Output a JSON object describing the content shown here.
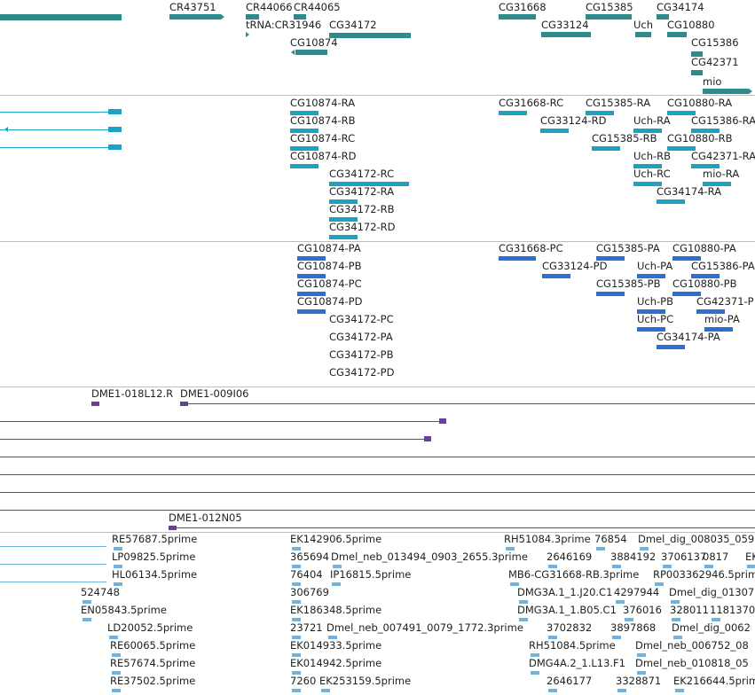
{
  "colors": {
    "gene": "#2d8c8a",
    "transcript": "#1ea0c0",
    "protein": "#2a6fd1",
    "clone": "#6a3ea1",
    "est": "#6fb3e0",
    "divider": "#bdbdbd"
  },
  "tracks": {
    "genes": [
      "CR43751",
      "CR44066",
      "CR44065",
      "tRNA:CR31946",
      "CG34172",
      "CG10874",
      "CG31668",
      "CG33124",
      "CG15385",
      "Uch",
      "CG34174",
      "CG10880",
      "CG15386",
      "CG42371",
      "mio"
    ],
    "transcripts": [
      "CG10874-RA",
      "CG10874-RB",
      "CG10874-RC",
      "CG10874-RD",
      "CG34172-RC",
      "CG34172-RA",
      "CG34172-RB",
      "CG34172-RD",
      "CG31668-RC",
      "CG33124-RD",
      "CG15385-RA",
      "CG15385-RB",
      "Uch-RA",
      "Uch-RB",
      "Uch-RC",
      "CG10880-RA",
      "CG10880-RB",
      "CG15386-RA",
      "CG42371-RA",
      "mio-RA",
      "CG34174-RA"
    ],
    "proteins": [
      "CG10874-PA",
      "CG10874-PB",
      "CG10874-PC",
      "CG10874-PD",
      "CG34172-PC",
      "CG34172-PA",
      "CG34172-PB",
      "CG34172-PD",
      "CG31668-PC",
      "CG33124-PD",
      "CG15385-PA",
      "CG15385-PB",
      "Uch-PA",
      "Uch-PB",
      "Uch-PC",
      "CG10880-PA",
      "CG10880-PB",
      "CG15386-PA",
      "CG42371-P",
      "mio-PA",
      "CG34174-PA"
    ],
    "clones": [
      "DME1-018L12.R",
      "DME1-009I06",
      "DME1-012N05"
    ],
    "ests": [
      "RE57687.5prime",
      "LP09825.5prime",
      "HL06134.5prime",
      "524748",
      "EN05843.5prime",
      "LD20052.5prime",
      "RE60065.5prime",
      "RE57674.5prime",
      "RE37502.5prime",
      "EK142906.5prime",
      "365694",
      "Dmel_neb_013494_0903_2655.3prime",
      "76404",
      "IP16815.5prime",
      "306769",
      "EK186348.5prime",
      "23721",
      "Dmel_neb_007491_0079_1772.3prime",
      "EK014933.5prime",
      "EK014942.5prime",
      "7260",
      "EK253159.5prime",
      "RH51084.3prime",
      "76854",
      "Dmel_dig_008035_059",
      "2646169",
      "3884192",
      "3706137",
      "0817",
      "EK",
      "MB6-CG31668-RB.3prime",
      "RP003362946.5prime",
      "DMG3A.1_1.J20.C1",
      "4297944",
      "Dmel_dig_01307",
      "DMG3A.1_1.B05.C1",
      "376016",
      "328011",
      "1181370",
      "3702832",
      "3897868",
      "Dmel_dig_0062",
      "RH51084.5prime",
      "Dmel_neb_006752_08",
      "DMG4A.2_1.L13.F1",
      "Dmel_neb_010818_05",
      "2646177",
      "3328871",
      "EK216644.5prime"
    ]
  }
}
